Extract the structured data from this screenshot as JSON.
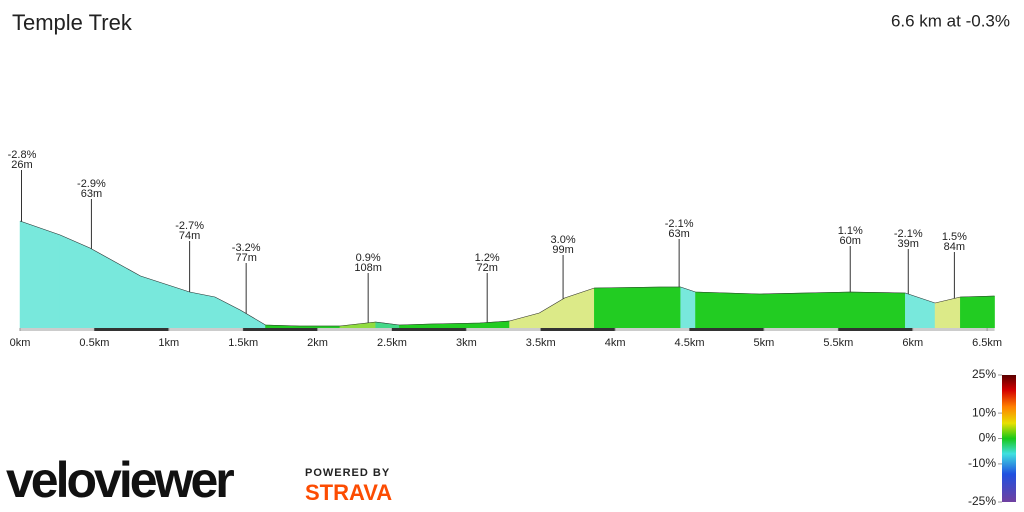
{
  "chart_data": {
    "type": "area",
    "title": "Temple Trek",
    "summary": "6.6 km at -0.3%",
    "x": [
      0,
      0.27,
      0.47,
      0.81,
      1.14,
      1.31,
      1.48,
      1.65,
      1.88,
      2.15,
      2.39,
      2.55,
      2.76,
      3.09,
      3.29,
      3.49,
      3.66,
      3.86,
      4.3,
      4.44,
      4.54,
      4.97,
      5.58,
      5.95,
      6.15,
      6.32,
      6.55
    ],
    "values": [
      107,
      93,
      80,
      52,
      36,
      31,
      18,
      3,
      2,
      2,
      6,
      3,
      4,
      5,
      7,
      15,
      30,
      40,
      41,
      41,
      36,
      34,
      36,
      35,
      25,
      31,
      32
    ],
    "xlim": [
      0,
      6.6
    ],
    "ylim": [
      0,
      110
    ],
    "xticks": [
      {
        "value": 0,
        "label": "0km"
      },
      {
        "value": 0.5,
        "label": "0.5km"
      },
      {
        "value": 1,
        "label": "1km"
      },
      {
        "value": 1.5,
        "label": "1.5km"
      },
      {
        "value": 2,
        "label": "2km"
      },
      {
        "value": 2.5,
        "label": "2.5km"
      },
      {
        "value": 3,
        "label": "3km"
      },
      {
        "value": 3.5,
        "label": "3.5km"
      },
      {
        "value": 4,
        "label": "4km"
      },
      {
        "value": 4.5,
        "label": "4.5km"
      },
      {
        "value": 5,
        "label": "5km"
      },
      {
        "value": 5.5,
        "label": "5.5km"
      },
      {
        "value": 6,
        "label": "6km"
      },
      {
        "value": 6.5,
        "label": "6.5km"
      }
    ],
    "annotations": [
      {
        "x": 0.01,
        "gradient": "-2.8%",
        "length": "26m"
      },
      {
        "x": 0.48,
        "gradient": "-2.9%",
        "length": "63m"
      },
      {
        "x": 1.14,
        "gradient": "-2.7%",
        "length": "74m"
      },
      {
        "x": 1.52,
        "gradient": "-3.2%",
        "length": "77m"
      },
      {
        "x": 2.34,
        "gradient": "0.9%",
        "length": "108m"
      },
      {
        "x": 3.14,
        "gradient": "1.2%",
        "length": "72m"
      },
      {
        "x": 3.65,
        "gradient": "3.0%",
        "length": "99m"
      },
      {
        "x": 4.43,
        "gradient": "-2.1%",
        "length": "63m"
      },
      {
        "x": 5.58,
        "gradient": "1.1%",
        "length": "60m"
      },
      {
        "x": 5.97,
        "gradient": "-2.1%",
        "length": "39m"
      },
      {
        "x": 6.28,
        "gradient": "1.5%",
        "length": "84m"
      }
    ],
    "gradient_scale": {
      "lim": [
        -25,
        25
      ],
      "ticks": [
        {
          "value": 25,
          "label": "25%"
        },
        {
          "value": 10,
          "label": "10%"
        },
        {
          "value": 0,
          "label": "0%"
        },
        {
          "value": -10,
          "label": "-10%"
        },
        {
          "value": -25,
          "label": "-25%"
        }
      ]
    }
  },
  "branding": {
    "logo": "veloviewer",
    "powered_by": "POWERED BY",
    "partner": "STRAVA"
  }
}
